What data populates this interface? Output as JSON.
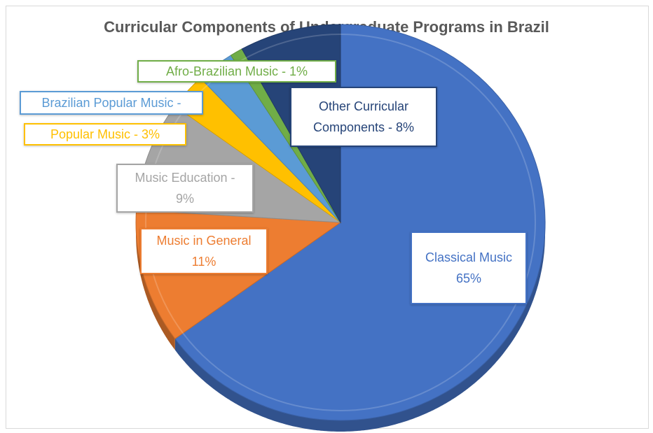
{
  "chart_data": {
    "type": "pie",
    "title": "Curricular Components of Undergraduate Programs in Brazil",
    "slices": [
      {
        "label": "Classical Music",
        "value": 65,
        "value_text": "65%",
        "color": "#4472c4"
      },
      {
        "label": "Music in General",
        "value": 11,
        "value_text": "11%",
        "color": "#ed7d31"
      },
      {
        "label": "Music Education",
        "value": 9,
        "value_text": "9%",
        "color": "#a5a5a5"
      },
      {
        "label": "Popular Music",
        "value": 3,
        "value_text": "3%",
        "color": "#ffc000"
      },
      {
        "label": "Brazilian Popular Music",
        "value": 3,
        "value_text": "",
        "color": "#5b9bd5"
      },
      {
        "label": "Afro-Brazilian Music",
        "value": 1,
        "value_text": "1%",
        "color": "#70ad47"
      },
      {
        "label": "Other Curricular Components",
        "value": 8,
        "value_text": "8%",
        "color": "#264478"
      }
    ],
    "data_labels": [
      {
        "lines": [
          "Classical Music",
          "65%"
        ],
        "color": "#4472c4"
      },
      {
        "lines": [
          "Music in General",
          "11%"
        ],
        "color": "#ed7d31"
      },
      {
        "lines": [
          "Music Education -",
          "9%"
        ],
        "color": "#a5a5a5"
      },
      {
        "lines": [
          "Popular Music - 3%"
        ],
        "color": "#ffc000"
      },
      {
        "lines": [
          "Brazilian Popular Music -"
        ],
        "color": "#5b9bd5"
      },
      {
        "lines": [
          "Afro-Brazilian Music - 1%"
        ],
        "color": "#70ad47"
      },
      {
        "lines": [
          "Other Curricular",
          "Components - 8%"
        ],
        "color": "#264478"
      }
    ],
    "legend": "none",
    "style": "3d"
  }
}
